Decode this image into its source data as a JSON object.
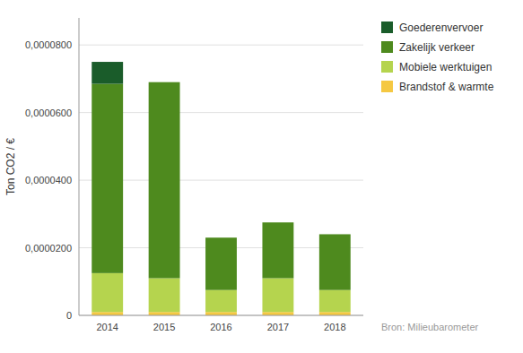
{
  "chart_data": {
    "type": "bar",
    "stacked": true,
    "categories": [
      "2014",
      "2015",
      "2016",
      "2017",
      "2018"
    ],
    "series": [
      {
        "name": "Brandstof & warmte",
        "color": "#f5c842",
        "values": [
          1e-06,
          1e-06,
          1e-06,
          1e-06,
          1e-06
        ]
      },
      {
        "name": "Mobiele werktuigen",
        "color": "#b5d44e",
        "values": [
          1.15e-05,
          1e-05,
          6.5e-06,
          1e-05,
          6.5e-06
        ]
      },
      {
        "name": "Zakelijk verkeer",
        "color": "#4e8a1e",
        "values": [
          5.6e-05,
          5.8e-05,
          1.55e-05,
          1.65e-05,
          1.65e-05
        ]
      },
      {
        "name": "Goederenvervoer",
        "color": "#1a5c2a",
        "values": [
          6.5e-06,
          0,
          0,
          0,
          0
        ]
      }
    ],
    "ylabel": "Ton CO2 / €",
    "ylim": [
      0,
      8.8e-05
    ],
    "yticks": [
      0,
      {
        "value": 2e-05,
        "label": "0,0000200"
      },
      {
        "value": 4e-05,
        "label": "0,0000400"
      },
      {
        "value": 6e-05,
        "label": "0,0000600"
      },
      {
        "value": 8e-05,
        "label": "0,0000800"
      }
    ],
    "grid": true,
    "legend": "right",
    "annotations": [
      "Bron: Milieubarometer"
    ]
  }
}
